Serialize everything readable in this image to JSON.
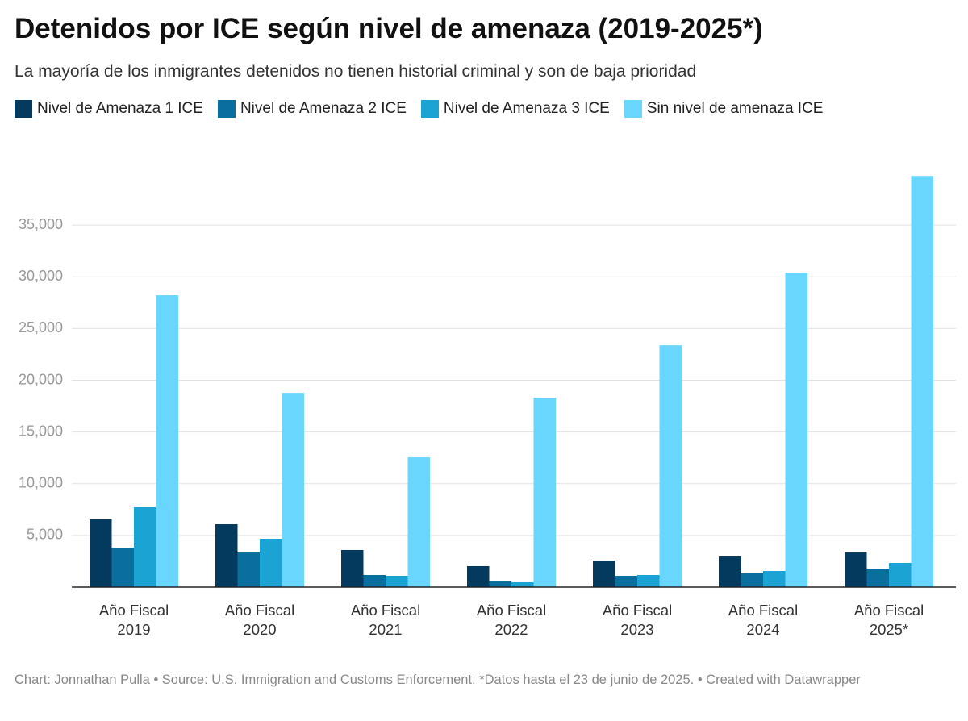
{
  "chart_data": {
    "type": "grouped-bar",
    "title": "Detenidos por ICE según nivel de amenaza (2019-2025*)",
    "subtitle": "La mayoría de los inmigrantes detenidos no tienen historial criminal y son de baja prioridad",
    "categories": [
      "Año Fiscal 2019",
      "Año Fiscal 2020",
      "Año Fiscal 2021",
      "Año Fiscal 2022",
      "Año Fiscal 2023",
      "Año Fiscal 2024",
      "Año Fiscal 2025*"
    ],
    "series": [
      {
        "name": "Nivel de Amenaza 1 ICE",
        "color": "#053a5f",
        "values": [
          6550,
          6080,
          3590,
          2030,
          2570,
          2960,
          3350
        ]
      },
      {
        "name": "Nivel de Amenaza 2 ICE",
        "color": "#0a6f9c",
        "values": [
          3820,
          3350,
          1170,
          550,
          1090,
          1330,
          1790
        ]
      },
      {
        "name": "Nivel de Amenaza 3 ICE",
        "color": "#1ba3d3",
        "values": [
          7720,
          4680,
          1090,
          470,
          1170,
          1560,
          2340
        ]
      },
      {
        "name": "Sin nivel de amenaza ICE",
        "color": "#69d6fd",
        "values": [
          28220,
          18780,
          12550,
          18320,
          23380,
          30400,
          39750
        ]
      }
    ],
    "ylim": [
      0,
      40000
    ],
    "yticks": [
      {
        "value": 5000,
        "label": "5,000"
      },
      {
        "value": 10000,
        "label": "10,000"
      },
      {
        "value": 15000,
        "label": "15,000"
      },
      {
        "value": 20000,
        "label": "20,000"
      },
      {
        "value": 25000,
        "label": "25,000"
      },
      {
        "value": 30000,
        "label": "30,000"
      },
      {
        "value": 35000,
        "label": "35,000"
      }
    ],
    "grid": true,
    "footer": "Chart: Jonnathan Pulla • Source: U.S. Immigration and Customs Enforcement. *Datos hasta el 23 de junio de 2025. • Created with Datawrapper"
  }
}
